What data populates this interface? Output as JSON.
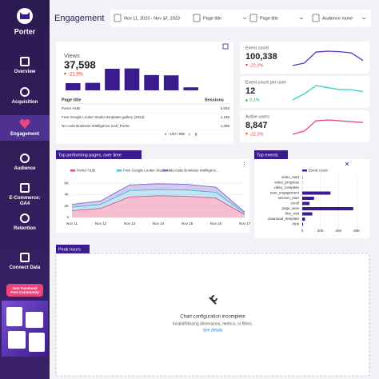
{
  "sidebar": {
    "brand": "Porter",
    "nav": [
      "Overview",
      "Acquisition",
      "Engagement",
      "Audience",
      "E-Commerce: GA4",
      "Retention",
      "Connect Data"
    ],
    "active_index": 2,
    "community_button": "Join Facebook Free Community"
  },
  "header": {
    "title": "Engagement",
    "filters": [
      "Nov 11, 2023 - Nov 17, 2023",
      "Page title",
      "Page title",
      "Audience name"
    ]
  },
  "views": {
    "label": "Views",
    "value": "37,598",
    "change": "-21.9%",
    "trend": "down",
    "bars": {
      "type": "bar",
      "values": [
        2400,
        2500,
        7200,
        7300,
        5100,
        5000,
        1000
      ],
      "ylim": [
        0,
        8000
      ],
      "color": "#3b1c8c"
    }
  },
  "table": {
    "columns": [
      "Page title",
      "Sessions"
    ],
    "rows": [
      [
        "Porter HUB",
        "3,063"
      ],
      [
        "Free Google Looker Studio templates gallery (2023)",
        "1,185"
      ],
      [
        "No-code Business Intelligence tool | Porter",
        "1,098"
      ]
    ],
    "pagination": "1 - 100 / 985"
  },
  "kpis": [
    {
      "label": "Event count",
      "value": "100,338",
      "change": "-22.2%",
      "trend": "down",
      "color": "#5b2fc9",
      "spark": [
        9000,
        10500,
        17000,
        17500,
        17200,
        16500,
        12000
      ]
    },
    {
      "label": "Event count per user",
      "value": "12",
      "change": "0.1%",
      "trend": "up",
      "color": "#2fd1c1",
      "spark": [
        11.6,
        11.9,
        12.3,
        12.2,
        12.1,
        12.1,
        12.0
      ]
    },
    {
      "label": "Active users",
      "value": "8,847",
      "change": "-22.2%",
      "trend": "down",
      "color": "#e8467c",
      "spark": [
        700,
        900,
        1500,
        1550,
        1500,
        1450,
        1400
      ]
    }
  ],
  "top_pages": {
    "tab": "Top performing pages, over time",
    "chart": {
      "type": "area",
      "stacked": true,
      "categories": [
        "Nov 11",
        "Nov 12",
        "Nov 13",
        "Nov 14",
        "Nov 15",
        "Nov 16",
        "Nov 17"
      ],
      "series": [
        {
          "name": "Porter HUB",
          "color": "#e8467c",
          "values": [
            1200,
            1600,
            3600,
            3800,
            3700,
            3400,
            500
          ]
        },
        {
          "name": "Free Google Looker Studio te...",
          "color": "#4fb8e0",
          "values": [
            600,
            700,
            1100,
            1100,
            1100,
            1000,
            250
          ]
        },
        {
          "name": "No-code Business Intelligenc...",
          "color": "#7b68c8",
          "values": [
            500,
            600,
            1000,
            1000,
            1000,
            900,
            200
          ]
        }
      ],
      "ylim": [
        0,
        7000
      ],
      "yticks": [
        0,
        {
          "value": 2000,
          "label": "2K"
        },
        {
          "value": 4000,
          "label": "4K"
        },
        {
          "value": 6000,
          "label": "6K"
        }
      ],
      "grid": true
    }
  },
  "top_events": {
    "tab": "Top events",
    "chart": {
      "type": "hbar",
      "categories": [
        "video_start",
        "video_progress",
        "video_complete",
        "user_engagement",
        "session_start",
        "scroll",
        "page_view",
        "first_visit",
        "download_template",
        "click"
      ],
      "series": [
        {
          "name": "Event count",
          "color": "#3b1c8c",
          "values": [
            300,
            200,
            100,
            31000,
            13000,
            8000,
            56000,
            11000,
            3000,
            1000
          ]
        }
      ],
      "xlim": [
        0,
        65000
      ],
      "xticks": [
        0,
        {
          "value": 20000,
          "label": "20K"
        },
        {
          "value": 40000,
          "label": "40K"
        },
        {
          "value": 60000,
          "label": "60K"
        }
      ],
      "grid": true
    }
  },
  "peak_hours": {
    "tab": "Peak hours",
    "message": "Chart configuration incomplete",
    "detail": "Invalid/Missing dimensions, metrics, or filters.",
    "link": "See details"
  }
}
